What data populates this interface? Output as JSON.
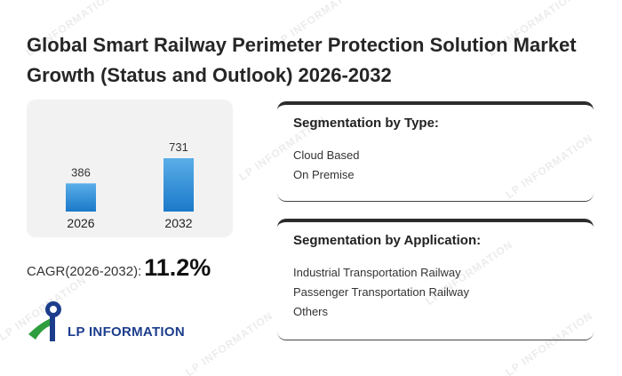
{
  "title": "Global Smart Railway Perimeter Protection Solution Market Growth (Status and Outlook) 2026-2032",
  "chart_data": {
    "type": "bar",
    "categories": [
      "2026",
      "2032"
    ],
    "values": [
      386,
      731
    ],
    "title": "",
    "xlabel": "",
    "ylabel": "",
    "ylim": [
      0,
      731
    ]
  },
  "cagr": {
    "label": "CAGR(2026-2032):",
    "value": "11.2%"
  },
  "segment_type": {
    "heading": "Segmentation by Type:",
    "items": [
      "Cloud Based",
      "On Premise"
    ]
  },
  "segment_application": {
    "heading": "Segmentation by Application:",
    "items": [
      "Industrial Transportation Railway",
      "Passenger Transportation Railway",
      "Others"
    ]
  },
  "logo": {
    "text": "LP INFORMATION"
  },
  "watermark": {
    "text": "LP INFORMATION"
  },
  "colors": {
    "bar_top": "#5aaee8",
    "bar_bottom": "#1b79c9",
    "logo_blue": "#1c3d8c",
    "logo_green": "#2e9e3e"
  }
}
